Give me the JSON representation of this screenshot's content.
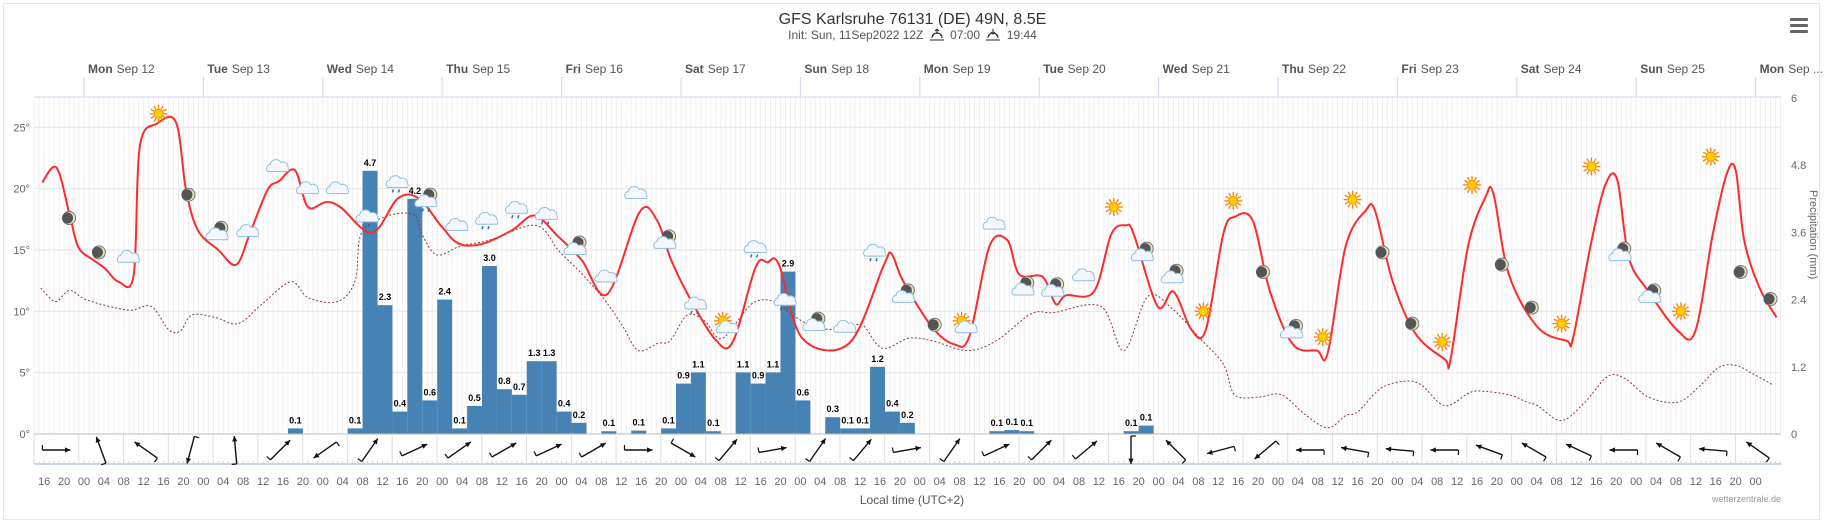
{
  "header": {
    "title": "GFS Karlsruhe 76131 (DE) 49N, 8.5E",
    "init": "Init: Sun, 11Sep2022 12Z",
    "sunrise": "07:00",
    "sunset": "19:44",
    "menu_icon": "hamburger-menu-icon"
  },
  "chart_data": {
    "type": "line+bar",
    "title": "GFS Karlsruhe 76131 (DE) 49N, 8.5E",
    "xlabel": "Local time (UTC+2)",
    "ylabel_right": "Precipitation (mm)",
    "credit": "wetterzentrale.de",
    "colors": {
      "temperature": "#ff2a2a",
      "dewpoint": "#8b3a3a",
      "precip": "#4682b4",
      "grid": "#ebebeb"
    },
    "x_units": "hours since Mon Sep 12 00:00 local",
    "xlim": [
      -10,
      341
    ],
    "days": [
      {
        "dow": "Mon",
        "date": "Sep 12"
      },
      {
        "dow": "Tue",
        "date": "Sep 13"
      },
      {
        "dow": "Wed",
        "date": "Sep 14"
      },
      {
        "dow": "Thu",
        "date": "Sep 15"
      },
      {
        "dow": "Fri",
        "date": "Sep 16"
      },
      {
        "dow": "Sat",
        "date": "Sep 17"
      },
      {
        "dow": "Sun",
        "date": "Sep 18"
      },
      {
        "dow": "Mon",
        "date": "Sep 19"
      },
      {
        "dow": "Tue",
        "date": "Sep 20"
      },
      {
        "dow": "Wed",
        "date": "Sep 21"
      },
      {
        "dow": "Thu",
        "date": "Sep 22"
      },
      {
        "dow": "Fri",
        "date": "Sep 23"
      },
      {
        "dow": "Sat",
        "date": "Sep 24"
      },
      {
        "dow": "Sun",
        "date": "Sep 25"
      },
      {
        "dow": "Mon",
        "date": "Sep ..."
      }
    ],
    "hour_labels_start": -8,
    "hour_labels": [
      "16",
      "20",
      "00",
      "04",
      "08",
      "12",
      "16",
      "20",
      "00",
      "04",
      "08",
      "12",
      "16",
      "20",
      "00",
      "04",
      "08",
      "12",
      "16",
      "20",
      "00",
      "04",
      "08",
      "12",
      "16",
      "20",
      "00",
      "04",
      "08",
      "12",
      "16",
      "20",
      "00",
      "04",
      "08",
      "12",
      "16",
      "20",
      "00",
      "04",
      "08",
      "12",
      "16",
      "20",
      "00",
      "04",
      "08",
      "12",
      "16",
      "20",
      "00",
      "04",
      "08",
      "12",
      "16",
      "20",
      "00",
      "04",
      "08",
      "12",
      "16",
      "20",
      "00",
      "04",
      "08",
      "12",
      "16",
      "20",
      "00",
      "04",
      "08",
      "12",
      "16",
      "20",
      "00",
      "04",
      "08",
      "12",
      "16",
      "20",
      "00",
      "04",
      "08",
      "12",
      "16",
      "20",
      "00"
    ],
    "y_left": {
      "ticks": [
        0,
        5,
        10,
        15,
        20,
        25
      ],
      "labels": [
        "0°",
        "5°",
        "10°",
        "15°",
        "20°",
        "25°"
      ],
      "range": [
        0,
        27.4
      ]
    },
    "y_right": {
      "ticks": [
        0,
        1.2,
        2.4,
        3.6,
        4.8,
        6
      ],
      "labels": [
        "0",
        "1.2",
        "2.4",
        "3.6",
        "4.8",
        "6"
      ],
      "range": [
        0,
        6
      ]
    },
    "temperature": [
      [
        -8.4,
        20.5
      ],
      [
        -5.5,
        21.7
      ],
      [
        -2.8,
        17.7
      ],
      [
        -1.1,
        15.2
      ],
      [
        1.8,
        14.2
      ],
      [
        4.2,
        13.5
      ],
      [
        7,
        12.4
      ],
      [
        10,
        13
      ],
      [
        11.2,
        23.4
      ],
      [
        14.7,
        25.3
      ],
      [
        18.5,
        25.4
      ],
      [
        20.5,
        19.9
      ],
      [
        22.9,
        16.6
      ],
      [
        27,
        15
      ],
      [
        30.6,
        13.8
      ],
      [
        33.4,
        16.4
      ],
      [
        36.9,
        19.9
      ],
      [
        39.2,
        20.6
      ],
      [
        42.4,
        21.5
      ],
      [
        45,
        18.5
      ],
      [
        48.6,
        18.9
      ],
      [
        51.5,
        18.5
      ],
      [
        57.9,
        16.4
      ],
      [
        63.1,
        19.2
      ],
      [
        67.3,
        19.2
      ],
      [
        71.9,
        16.9
      ],
      [
        75.4,
        15.5
      ],
      [
        80.1,
        15.5
      ],
      [
        86,
        16.6
      ],
      [
        90.6,
        17.8
      ],
      [
        95.3,
        16.1
      ],
      [
        100,
        14.2
      ],
      [
        105.2,
        11.4
      ],
      [
        111.7,
        18.1
      ],
      [
        115.2,
        17.4
      ],
      [
        118,
        14.2
      ],
      [
        121.6,
        11.2
      ],
      [
        126.9,
        7.7
      ],
      [
        130.4,
        7.5
      ],
      [
        135,
        13.6
      ],
      [
        137.4,
        14
      ],
      [
        139.7,
        13.8
      ],
      [
        144.4,
        7.8
      ],
      [
        153.8,
        7.4
      ],
      [
        160.7,
        13.7
      ],
      [
        162.3,
        14.7
      ],
      [
        164.6,
        12.5
      ],
      [
        170.5,
        8.7
      ],
      [
        175,
        7.3
      ],
      [
        178,
        8
      ],
      [
        182,
        15.3
      ],
      [
        185.6,
        15.8
      ],
      [
        188,
        13
      ],
      [
        192.7,
        12.8
      ],
      [
        195.3,
        10.6
      ],
      [
        197.4,
        11.3
      ],
      [
        203,
        11.6
      ],
      [
        206.5,
        16.3
      ],
      [
        209.4,
        17
      ],
      [
        211,
        16.3
      ],
      [
        215.8,
        10.4
      ],
      [
        219,
        11.6
      ],
      [
        222.6,
        8.5
      ],
      [
        225.5,
        8.5
      ],
      [
        229,
        16.3
      ],
      [
        231.3,
        17.7
      ],
      [
        234.9,
        17.4
      ],
      [
        238.4,
        11.6
      ],
      [
        243,
        7.3
      ],
      [
        247.8,
        6.8
      ],
      [
        250,
        6.6
      ],
      [
        253.6,
        15.3
      ],
      [
        257.6,
        18.2
      ],
      [
        259.5,
        18.2
      ],
      [
        263,
        12.5
      ],
      [
        267.6,
        8.2
      ],
      [
        273.5,
        6.1
      ],
      [
        274.7,
        6.1
      ],
      [
        278.2,
        15.3
      ],
      [
        281.7,
        19.3
      ],
      [
        283.3,
        19.6
      ],
      [
        286.4,
        13
      ],
      [
        292.2,
        8.7
      ],
      [
        298,
        7.6
      ],
      [
        299.3,
        7.8
      ],
      [
        302.8,
        15.3
      ],
      [
        305.8,
        20.3
      ],
      [
        308.2,
        20.7
      ],
      [
        310.5,
        14.4
      ],
      [
        314.5,
        11.6
      ],
      [
        320.4,
        8.4
      ],
      [
        323.9,
        8.4
      ],
      [
        327.4,
        16.3
      ],
      [
        330.2,
        21.2
      ],
      [
        332,
        21.5
      ],
      [
        333.7,
        15.8
      ],
      [
        336.7,
        12
      ],
      [
        340.2,
        9.5
      ]
    ],
    "dewpoint": [
      [
        -8.7,
        11.9
      ],
      [
        -5.7,
        10.8
      ],
      [
        -2.9,
        11.7
      ],
      [
        0.7,
        10.9
      ],
      [
        8.9,
        10.1
      ],
      [
        13.5,
        10.4
      ],
      [
        17,
        8.5
      ],
      [
        19.4,
        8.4
      ],
      [
        21.7,
        9.7
      ],
      [
        26.4,
        9.5
      ],
      [
        31,
        9
      ],
      [
        35.8,
        10.6
      ],
      [
        41.6,
        12.4
      ],
      [
        45.1,
        11.1
      ],
      [
        51,
        10.8
      ],
      [
        54.5,
        12.5
      ],
      [
        55.7,
        16.3
      ],
      [
        60.4,
        17.7
      ],
      [
        66.2,
        17.9
      ],
      [
        67.9,
        16.3
      ],
      [
        70.9,
        14.6
      ],
      [
        75.6,
        15.3
      ],
      [
        81.5,
        15.8
      ],
      [
        90.8,
        17
      ],
      [
        95.5,
        14.9
      ],
      [
        100.2,
        13
      ],
      [
        104.9,
        10.8
      ],
      [
        108.4,
        8.7
      ],
      [
        111.4,
        6.8
      ],
      [
        115.4,
        7.4
      ],
      [
        117.8,
        7.6
      ],
      [
        121.3,
        9.7
      ],
      [
        124.8,
        9.2
      ],
      [
        128.3,
        7.8
      ],
      [
        134.2,
        10.6
      ],
      [
        138.8,
        10.8
      ],
      [
        142.4,
        9.7
      ],
      [
        147,
        8.7
      ],
      [
        152.9,
        8.5
      ],
      [
        156.4,
        8.9
      ],
      [
        160.4,
        7
      ],
      [
        165.8,
        7.8
      ],
      [
        170.5,
        7.6
      ],
      [
        177.5,
        6.8
      ],
      [
        183.4,
        7.6
      ],
      [
        190.4,
        9.8
      ],
      [
        195,
        9.9
      ],
      [
        204.4,
        10.4
      ],
      [
        209,
        6.8
      ],
      [
        213.8,
        11.2
      ],
      [
        218.5,
        10.3
      ],
      [
        224.3,
        7.8
      ],
      [
        229,
        5.7
      ],
      [
        231.3,
        3.2
      ],
      [
        236,
        3
      ],
      [
        240.7,
        3.2
      ],
      [
        245.4,
        1.6
      ],
      [
        250,
        0.5
      ],
      [
        253.6,
        1.5
      ],
      [
        256,
        1.8
      ],
      [
        260.6,
        3.7
      ],
      [
        265.3,
        4.3
      ],
      [
        268.8,
        4
      ],
      [
        273.5,
        2.3
      ],
      [
        278.2,
        3.3
      ],
      [
        280.5,
        3.5
      ],
      [
        286.4,
        3.2
      ],
      [
        290,
        2.6
      ],
      [
        292.2,
        2.3
      ],
      [
        297,
        1.1
      ],
      [
        301.7,
        2.6
      ],
      [
        306.3,
        4.7
      ],
      [
        309.8,
        4.5
      ],
      [
        314.5,
        3
      ],
      [
        320.4,
        2.6
      ],
      [
        325,
        4
      ],
      [
        328.5,
        5.4
      ],
      [
        332,
        5.6
      ],
      [
        335.5,
        4.9
      ],
      [
        339.5,
        4
      ]
    ],
    "precip_bar_hours": 3,
    "precipitation": [
      {
        "h": 41,
        "v": 0.1,
        "label": "0.1"
      },
      {
        "h": 53,
        "v": 0.1,
        "label": "0.1"
      },
      {
        "h": 56,
        "v": 4.7,
        "label": "4.7"
      },
      {
        "h": 59,
        "v": 2.3,
        "label": "2.3"
      },
      {
        "h": 62,
        "v": 0.4,
        "label": "0.4"
      },
      {
        "h": 65,
        "v": 4.2,
        "label": "4.2"
      },
      {
        "h": 68,
        "v": 0.6,
        "label": "0.6"
      },
      {
        "h": 71,
        "v": 2.4,
        "label": "2.4"
      },
      {
        "h": 74,
        "v": 0.1,
        "label": "0.1"
      },
      {
        "h": 77,
        "v": 0.5,
        "label": "0.5"
      },
      {
        "h": 80,
        "v": 3.0,
        "label": "3.0"
      },
      {
        "h": 83,
        "v": 0.8,
        "label": "0.8"
      },
      {
        "h": 86,
        "v": 0.7,
        "label": "0.7"
      },
      {
        "h": 89,
        "v": 1.3,
        "label": "1.3"
      },
      {
        "h": 92,
        "v": 1.3,
        "label": "1.3"
      },
      {
        "h": 95,
        "v": 0.4,
        "label": "0.4"
      },
      {
        "h": 98,
        "v": 0.2,
        "label": "0.2"
      },
      {
        "h": 104,
        "v": 0.05,
        "label": "0.1"
      },
      {
        "h": 110,
        "v": 0.06,
        "label": "0.1"
      },
      {
        "h": 116,
        "v": 0.1,
        "label": "0.1"
      },
      {
        "h": 119,
        "v": 0.9,
        "label": "0.9"
      },
      {
        "h": 122,
        "v": 1.1,
        "label": "1.1"
      },
      {
        "h": 125,
        "v": 0.05,
        "label": "0.1"
      },
      {
        "h": 131,
        "v": 1.1,
        "label": "1.1"
      },
      {
        "h": 134,
        "v": 0.9,
        "label": "0.9"
      },
      {
        "h": 137,
        "v": 1.1,
        "label": "1.1"
      },
      {
        "h": 140,
        "v": 2.9,
        "label": "2.9"
      },
      {
        "h": 143,
        "v": 0.6,
        "label": "0.6"
      },
      {
        "h": 149,
        "v": 0.3,
        "label": "0.3"
      },
      {
        "h": 152,
        "v": 0.1,
        "label": "0.1"
      },
      {
        "h": 155,
        "v": 0.1,
        "label": "0.1"
      },
      {
        "h": 158,
        "v": 1.2,
        "label": "1.2"
      },
      {
        "h": 161,
        "v": 0.4,
        "label": "0.4"
      },
      {
        "h": 164,
        "v": 0.2,
        "label": "0.2"
      },
      {
        "h": 182,
        "v": 0.05,
        "label": "0.1"
      },
      {
        "h": 185,
        "v": 0.07,
        "label": "0.1"
      },
      {
        "h": 188,
        "v": 0.05,
        "label": "0.1"
      },
      {
        "h": 209,
        "v": 0.05,
        "label": "0.1"
      },
      {
        "h": 212,
        "v": 0.15,
        "label": "0.1"
      }
    ],
    "weather_icons_start": -3,
    "weather_icons_step": 6,
    "weather_icons": [
      [
        "moon",
        17.6
      ],
      [
        "moon",
        14.8
      ],
      [
        "cloud",
        14.4
      ],
      [
        "sun",
        26.1
      ],
      [
        "moon",
        19.5
      ],
      [
        "moon-cloud",
        16.4
      ],
      [
        "cloud",
        16.5
      ],
      [
        "cloud",
        21.8
      ],
      [
        "cloud",
        20
      ],
      [
        "cloud",
        20
      ],
      [
        "rain",
        17.7
      ],
      [
        "rain",
        20.5
      ],
      [
        "moon-rain",
        19.1
      ],
      [
        "cloud",
        17
      ],
      [
        "rain",
        17.5
      ],
      [
        "rain",
        18.4
      ],
      [
        "rain",
        17.9
      ],
      [
        "moon-cloud",
        15.2
      ],
      [
        "cloud",
        12.8
      ],
      [
        "cloud",
        19.6
      ],
      [
        "moon-cloud",
        15.7
      ],
      [
        "rain",
        10.6
      ],
      [
        "sun-cloud",
        8.9
      ],
      [
        "rain",
        15.2
      ],
      [
        "rain",
        10.9
      ],
      [
        "moon-cloud",
        9
      ],
      [
        "cloud",
        8.7
      ],
      [
        "rain",
        14.9
      ],
      [
        "moon-cloud",
        11.3
      ],
      [
        "moon",
        8.9
      ],
      [
        "sun-cloud",
        8.9
      ],
      [
        "cloud",
        17.1
      ],
      [
        "moon-cloud",
        11.9
      ],
      [
        "moon-cloud",
        11.8
      ],
      [
        "cloud",
        12.9
      ],
      [
        "sun",
        18.5
      ],
      [
        "moon-cloud",
        14.7
      ],
      [
        "moon-cloud",
        12.9
      ],
      [
        "sun",
        10
      ],
      [
        "sun",
        19
      ],
      [
        "moon",
        13.2
      ],
      [
        "moon-cloud",
        8.4
      ],
      [
        "sun",
        7.9
      ],
      [
        "sun",
        19.1
      ],
      [
        "moon",
        14.8
      ],
      [
        "moon",
        9
      ],
      [
        "sun",
        7.5
      ],
      [
        "sun",
        20.3
      ],
      [
        "moon",
        13.8
      ],
      [
        "moon",
        10.3
      ],
      [
        "sun",
        9
      ],
      [
        "sun",
        21.8
      ],
      [
        "moon-cloud",
        14.7
      ],
      [
        "moon-cloud",
        11.3
      ],
      [
        "sun",
        10
      ],
      [
        "sun",
        22.6
      ],
      [
        "moon",
        13.2
      ],
      [
        "moon",
        11
      ]
    ],
    "wind_step_hours": 9,
    "wind_direction_deg": [
      0,
      110,
      145,
      255,
      95,
      45,
      215,
      55,
      25,
      35,
      30,
      25,
      30,
      0,
      330,
      50,
      10,
      55,
      50,
      10,
      55,
      25,
      45,
      40,
      270,
      135,
      195,
      220,
      180,
      170,
      175,
      180,
      160,
      150,
      155,
      180,
      150,
      175,
      145
    ]
  }
}
